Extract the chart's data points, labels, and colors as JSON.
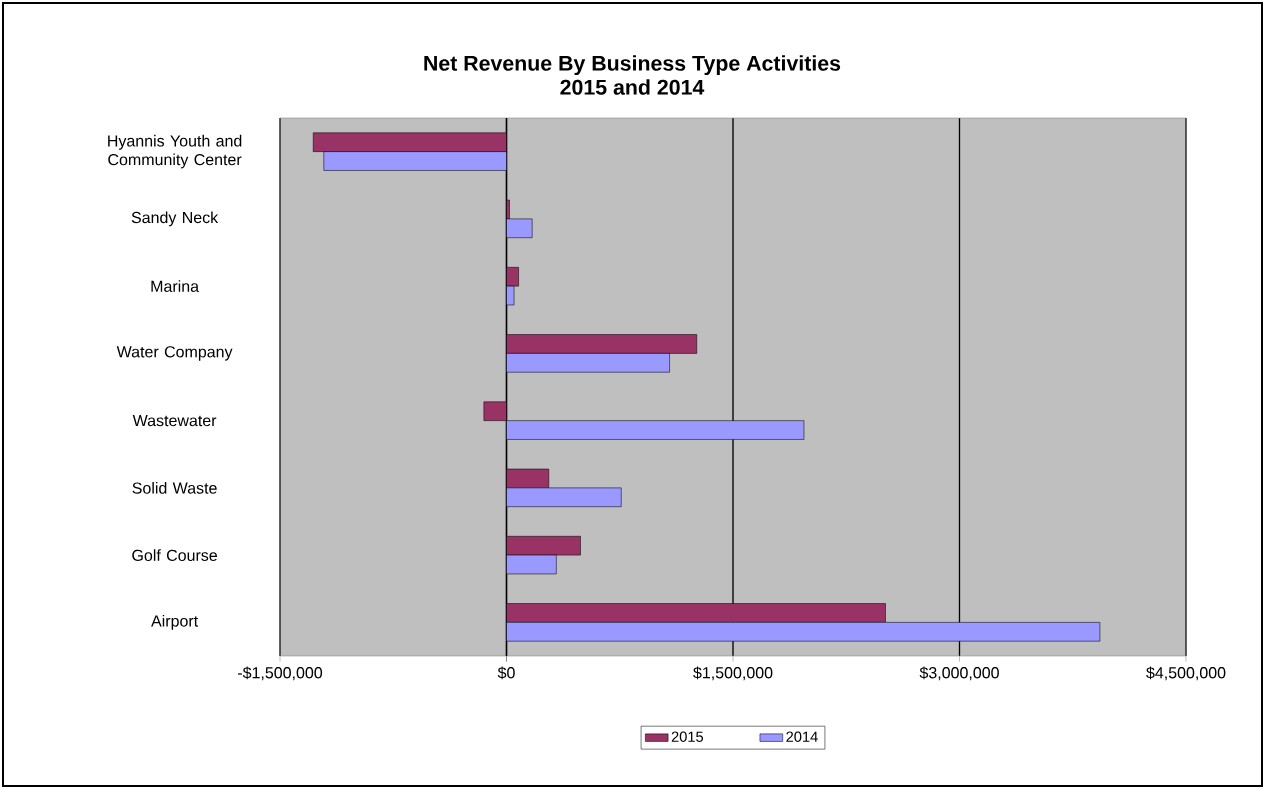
{
  "chart_data": {
    "type": "bar",
    "orientation": "horizontal",
    "title": "Net Revenue By Business Type Activities",
    "subtitle": "2015 and 2014",
    "categories": [
      "Hyannis Youth and Community Center",
      "Sandy Neck",
      "Marina",
      "Water Company",
      "Wastewater",
      "Solid Waste",
      "Golf Course",
      "Airport"
    ],
    "series": [
      {
        "name": "2015",
        "color": "#993366",
        "values": [
          -1280000,
          20000,
          80000,
          1260000,
          -150000,
          280000,
          490000,
          2510000
        ]
      },
      {
        "name": "2014",
        "color": "#9999ff",
        "values": [
          -1210000,
          170000,
          50000,
          1080000,
          1970000,
          760000,
          330000,
          3930000
        ]
      }
    ],
    "xlim": [
      -1500000,
      4500000
    ],
    "xticks": [
      {
        "value": -1500000,
        "label": "-$1,500,000"
      },
      {
        "value": 0,
        "label": "$0"
      },
      {
        "value": 1500000,
        "label": "$1,500,000"
      },
      {
        "value": 3000000,
        "label": "$3,000,000"
      },
      {
        "value": 4500000,
        "label": "$4,500,000"
      }
    ],
    "grid": "x",
    "legend": "bottom"
  }
}
